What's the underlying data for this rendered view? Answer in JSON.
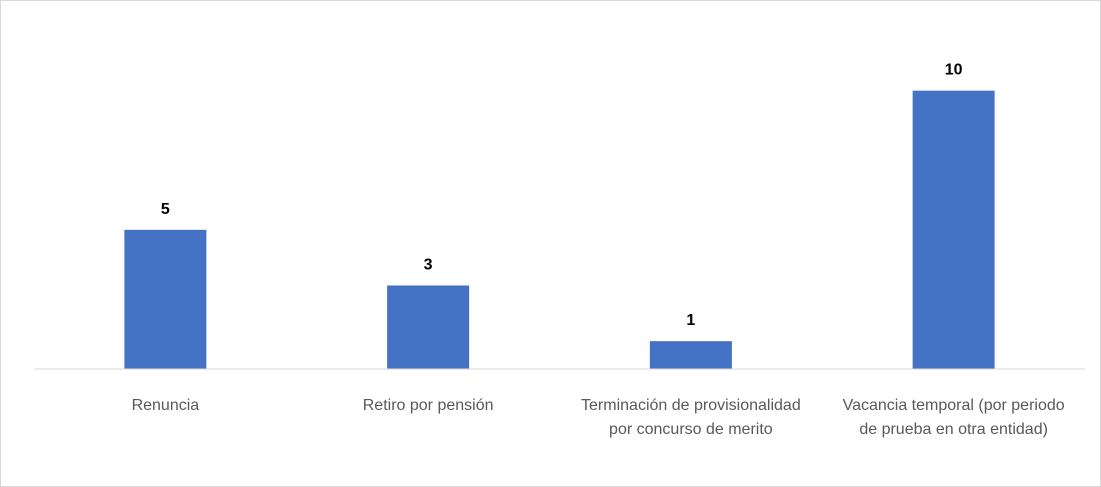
{
  "chart_data": {
    "type": "bar",
    "categories": [
      "Renuncia",
      "Retiro por pensión",
      "Terminación de provisionalidad por concurso de merito",
      "Vacancia temporal (por periodo de prueba en otra entidad)"
    ],
    "values": [
      5,
      3,
      1,
      10
    ],
    "color": "#4472c4",
    "ylim": [
      0,
      12
    ]
  }
}
